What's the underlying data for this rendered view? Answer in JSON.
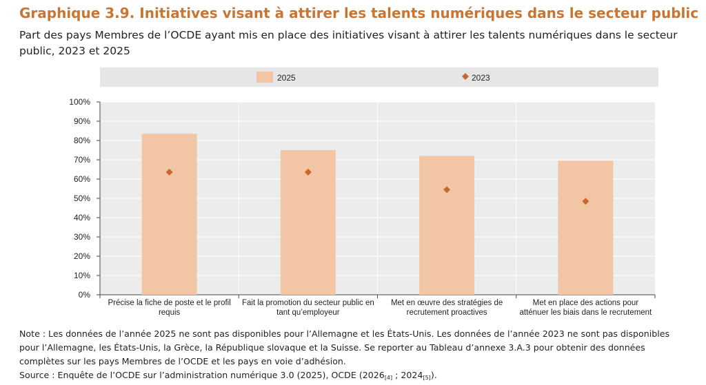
{
  "title": "Graphique 3.9. Initiatives visant à attirer les talents numériques dans le secteur public",
  "subtitle": "Part des pays Membres de l’OCDE ayant mis en place des initiatives visant à attirer les talents numériques dans le secteur public, 2023 et 2025",
  "note": "Note : Les données de l’année 2025 ne sont pas disponibles pour l’Allemagne et les États-Unis. Les données de l’année 2023 ne sont pas disponibles pour l’Allemagne, les États-Unis, la Grèce, la République slovaque et la Suisse. Se reporter au Tableau d’annexe 3.A.3 pour obtenir des données complètes sur les pays Membres de l’OCDE et les pays en voie d’adhésion.",
  "source": {
    "text": "Source : Enquête de l’OCDE sur l’administration numérique 3.0 (2025), OCDE (2026",
    "ref1": "[4]",
    "sep": " ; 2024",
    "ref2": "[5]",
    "end": ")."
  },
  "chart_data": {
    "type": "bar",
    "categories": [
      [
        "Précise la fiche de poste et le profil",
        "requis"
      ],
      [
        "Fait la promotion du secteur public en",
        "tant qu’employeur"
      ],
      [
        "Met en œuvre des stratégies de",
        "recrutement proactives"
      ],
      [
        "Met en place des actions pour",
        "atténuer les biais dans le recrutement"
      ]
    ],
    "series": [
      {
        "name": "2025",
        "type": "bar",
        "values": [
          83.5,
          75,
          72,
          69.5
        ]
      },
      {
        "name": "2023",
        "type": "scatter",
        "marker": "diamond",
        "values": [
          63.6,
          63.6,
          54.5,
          48.5
        ]
      }
    ],
    "ylim": [
      0,
      100
    ],
    "yticks": [
      "0%",
      "10%",
      "20%",
      "30%",
      "40%",
      "50%",
      "60%",
      "70%",
      "80%",
      "90%",
      "100%"
    ],
    "legend_position": "top",
    "grid": true,
    "colors": {
      "bar": "#f2c6a4",
      "marker": "#c8682d",
      "plot_bg": "#ececec",
      "legend_bg": "#e6e6e6",
      "grid": "#ffffff"
    }
  }
}
